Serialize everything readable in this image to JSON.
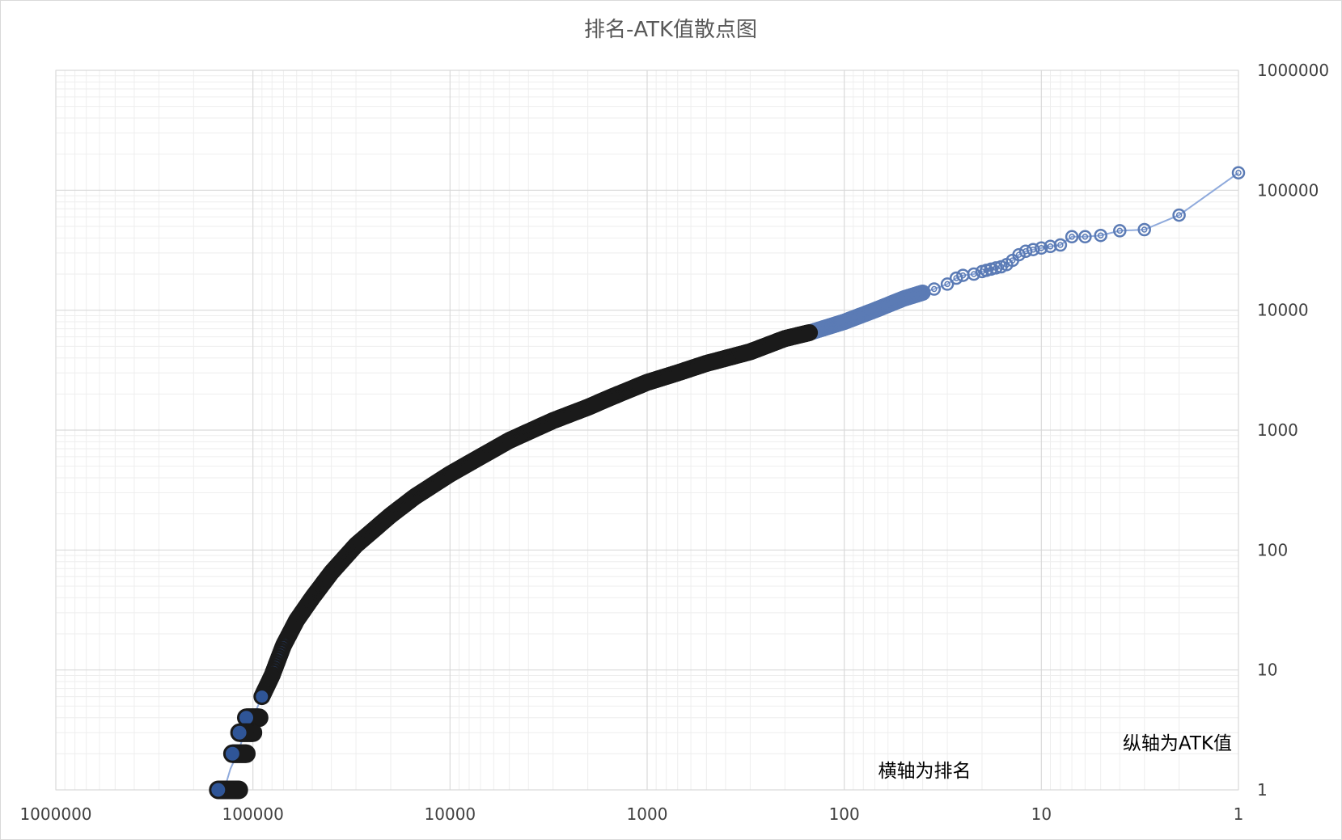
{
  "chart_data": {
    "type": "scatter",
    "title": "排名-ATK值散点图",
    "xlabel": "横轴为排名",
    "ylabel": "纵轴为ATK值",
    "x_scale": "log",
    "y_scale": "log",
    "x_reversed": true,
    "y_axis_position": "right",
    "xlim": [
      1,
      1000000
    ],
    "ylim": [
      1,
      1000000
    ],
    "x_tick_labels": [
      "1000000",
      "100000",
      "10000",
      "1000",
      "100",
      "10",
      "1"
    ],
    "y_tick_labels": [
      "1000000",
      "100000",
      "10000",
      "1000",
      "100",
      "10",
      "1"
    ],
    "grid": true,
    "legend": "none",
    "colors": {
      "dense_marker_fill": "#2f5597",
      "dense_marker_edge": "#1a1a1a",
      "sparse_marker_edge": "#5b7bb5",
      "line": "#8faadc",
      "grid_major": "#d9d9d9",
      "grid_minor": "#eeeeee"
    },
    "series": [
      {
        "points": [
          [
            1,
            140000
          ],
          [
            2,
            62000
          ],
          [
            3,
            47000
          ],
          [
            4,
            46000
          ],
          [
            5,
            42000
          ],
          [
            6,
            41000
          ],
          [
            7,
            41000
          ],
          [
            8,
            35000
          ],
          [
            9,
            34000
          ],
          [
            10,
            33000
          ],
          [
            11,
            32000
          ],
          [
            12,
            31000
          ],
          [
            13,
            29000
          ],
          [
            14,
            26000
          ],
          [
            15,
            24000
          ],
          [
            16,
            23000
          ],
          [
            17,
            22500
          ],
          [
            18,
            22000
          ],
          [
            19,
            21500
          ],
          [
            20,
            21000
          ],
          [
            22,
            20000
          ],
          [
            25,
            19500
          ],
          [
            27,
            18500
          ],
          [
            30,
            16500
          ],
          [
            35,
            15000
          ],
          [
            40,
            14000
          ],
          [
            50,
            12500
          ],
          [
            70,
            10000
          ],
          [
            100,
            8000
          ],
          [
            150,
            6500
          ],
          [
            200,
            5800
          ],
          [
            300,
            4500
          ],
          [
            500,
            3600
          ],
          [
            700,
            3000
          ],
          [
            1000,
            2500
          ],
          [
            1500,
            1900
          ],
          [
            2000,
            1550
          ],
          [
            3000,
            1200
          ],
          [
            5000,
            820
          ],
          [
            7000,
            600
          ],
          [
            10000,
            430
          ],
          [
            15000,
            280
          ],
          [
            20000,
            195
          ],
          [
            30000,
            110
          ],
          [
            40000,
            65
          ],
          [
            50000,
            40
          ],
          [
            60000,
            26
          ],
          [
            70000,
            16
          ],
          [
            80000,
            9
          ],
          [
            90000,
            6
          ],
          [
            100000,
            4
          ],
          [
            110000,
            3
          ],
          [
            120000,
            2
          ],
          [
            130000,
            1.5
          ],
          [
            140000,
            1
          ]
        ]
      }
    ],
    "flat_tail_segments": [
      {
        "y": 4,
        "x_from": 93000,
        "x_to": 108000
      },
      {
        "y": 3,
        "x_from": 100000,
        "x_to": 117000
      },
      {
        "y": 2,
        "x_from": 108000,
        "x_to": 127000
      },
      {
        "y": 1,
        "x_from": 118000,
        "x_to": 150000
      }
    ]
  }
}
